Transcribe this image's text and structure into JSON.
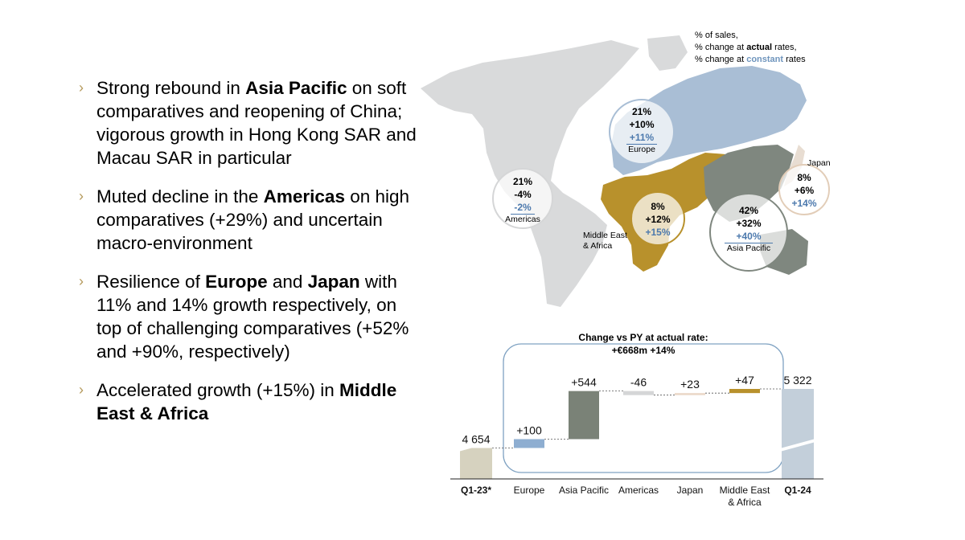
{
  "bullets": [
    {
      "pre": "Strong rebound in ",
      "bold": "Asia Pacific",
      "post": " on soft comparatives and reopening of China; vigorous growth in Hong Kong SAR and Macau SAR in particular"
    },
    {
      "pre": "Muted decline in the ",
      "bold": "Americas",
      "post": " on high comparatives (+29%) and uncertain macro-environment"
    },
    {
      "pre": "Resilience of ",
      "bold": "Europe",
      "mid": " and ",
      "bold2": "Japan",
      "post": " with 11% and 14% growth respectively, on top of challenging comparatives (+52% and +90%, respectively)"
    },
    {
      "pre": "Accelerated growth (+15%) in ",
      "bold": "Middle East & Africa",
      "post": ""
    }
  ],
  "legend": {
    "line1": "% of sales,",
    "line2_pre": "% change at ",
    "line2_bold": "actual",
    "line2_post": " rates,",
    "line3_pre": "% change at ",
    "line3_bold": "constant",
    "line3_post": " rates"
  },
  "regions": {
    "europe": {
      "share": "21%",
      "actual": "+10%",
      "constant": "+11%",
      "name": "Europe"
    },
    "americas": {
      "share": "21%",
      "actual": "-4%",
      "constant": "-2%",
      "name": "Americas"
    },
    "mea": {
      "share": "8%",
      "actual": "+12%",
      "constant": "+15%",
      "name_line1": "Middle East",
      "name_line2": "& Africa"
    },
    "apac": {
      "share": "42%",
      "actual": "+32%",
      "constant": "+40%",
      "name": "Asia Pacific"
    },
    "japan": {
      "share": "8%",
      "actual": "+6%",
      "constant": "+14%",
      "name": "Japan"
    }
  },
  "colors": {
    "europe": "#a9bed5",
    "americas": "#d9dadb",
    "mea": "#b8912c",
    "apac": "#7f877f",
    "japan": "#e8ddd2",
    "q1_23": "#d6d2bf",
    "q1_24": "#c3cfda",
    "bracket": "#7fa2c2",
    "bullet": "#b59a5c"
  },
  "chart_data": {
    "type": "bar",
    "subtype": "waterfall",
    "title_line1": "Change vs PY at actual rate:",
    "title_line2": "+€668m +14%",
    "categories": [
      "Q1-23*",
      "Europe",
      "Asia Pacific",
      "Americas",
      "Japan",
      "Middle East & Africa",
      "Q1-24"
    ],
    "category_lines": [
      [
        "Q1-23*"
      ],
      [
        "Europe"
      ],
      [
        "Asia Pacific"
      ],
      [
        "Americas"
      ],
      [
        "Japan"
      ],
      [
        "Middle East",
        "& Africa"
      ],
      [
        "Q1-24"
      ]
    ],
    "bold_categories": [
      "Q1-23*",
      "Q1-24"
    ],
    "values": [
      4654,
      100,
      544,
      -46,
      23,
      47,
      5322
    ],
    "labels": [
      "4 654",
      "+100",
      "+544",
      "-46",
      "+23",
      "+47",
      "5 322"
    ],
    "kinds": [
      "total",
      "delta",
      "delta",
      "delta",
      "delta",
      "delta",
      "total"
    ],
    "bar_colors": [
      "#d6d2bf",
      "#8eaed1",
      "#7a8277",
      "#d5d6d7",
      "#ead8c8",
      "#b8912c",
      "#c3cfda"
    ],
    "axis_break": true
  }
}
